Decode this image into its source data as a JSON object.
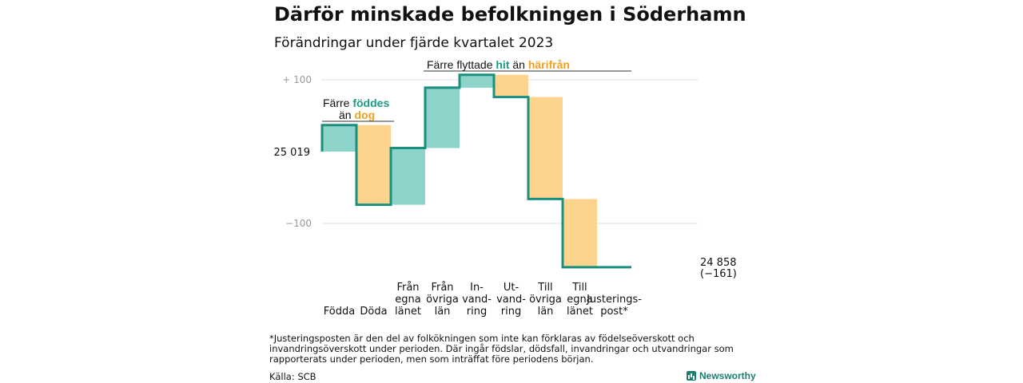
{
  "header": {
    "title": "Därför minskade befolkningen i Söderhamn",
    "subtitle": "Förändringar under fjärde kvartalet 2023"
  },
  "footnote": "*Justeringsposten är den del av folkökningen som inte kan förklaras av födelseöverskott och invandringsöverskott under perioden. Där ingår födslar, dödsfall, invandringar och utvandringar som rapporterats under perioden, men som inträffat före periodens början.",
  "source": "Källa: SCB",
  "brand": {
    "name": "Newsworthy"
  },
  "colors": {
    "increase": "#8dd3c9",
    "decrease": "#fdd48e",
    "line": "#1a8f7e",
    "grid": "#dddddd"
  },
  "annotations": {
    "births": {
      "line1_pre": "Färre ",
      "line1_hl": "föddes",
      "line2_pre": "än ",
      "line2_hl": "dog"
    },
    "migration": {
      "pre": "Färre flyttade ",
      "hl1": "hit",
      "mid": " än ",
      "hl2": "härifrån"
    }
  },
  "chart_data": {
    "type": "waterfall",
    "title": "Därför minskade befolkningen i Söderhamn",
    "subtitle": "Förändringar under fjärde kvartalet 2023",
    "start": {
      "value": 25019,
      "label": "25  019"
    },
    "end": {
      "value": 24858,
      "label": "24 858",
      "change_label": "(−161)"
    },
    "y_ticks": [
      {
        "value": 100,
        "label": "+  100"
      },
      {
        "value": -100,
        "label": "−100"
      }
    ],
    "ylim": [
      -180,
      110
    ],
    "grid": true,
    "categories": [
      {
        "label": [
          "Födda"
        ],
        "change": 37
      },
      {
        "label": [
          "Döda"
        ],
        "change": -111
      },
      {
        "label": [
          "Från",
          "egna",
          "länet"
        ],
        "change": 79
      },
      {
        "label": [
          "Från",
          "övriga",
          "län"
        ],
        "change": 84
      },
      {
        "label": [
          "In-",
          "vand-",
          "ring"
        ],
        "change": 18
      },
      {
        "label": [
          "Ut-",
          "vand-",
          "ring"
        ],
        "change": -31
      },
      {
        "label": [
          "Till",
          "övriga",
          "län"
        ],
        "change": -142
      },
      {
        "label": [
          "Till",
          "egna",
          "länet"
        ],
        "change": -95
      },
      {
        "label": [
          "Justerings-",
          "post*"
        ],
        "change": 0
      }
    ]
  }
}
